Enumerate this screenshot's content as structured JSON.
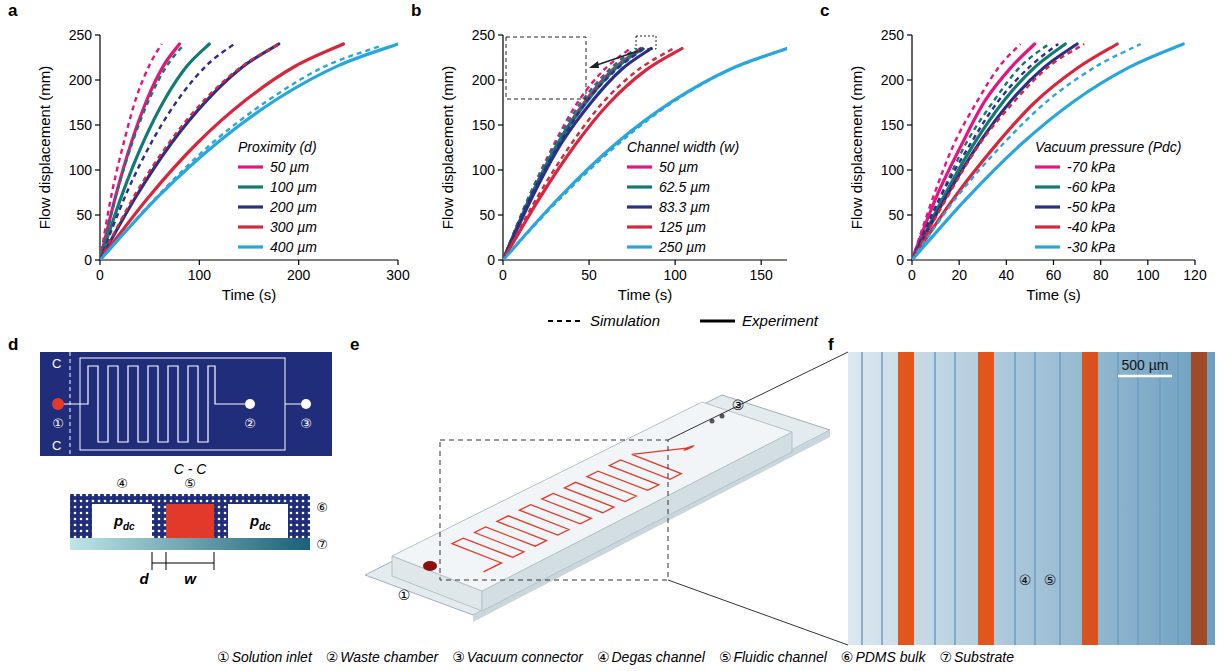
{
  "chart_data": [
    {
      "type": "line",
      "panel": "a",
      "x_label": "Time (s)",
      "y_label": "Flow displacement (mm)",
      "legend_title": "Proximity (d)",
      "legend": "lower right",
      "grid": false,
      "xlim": [
        0,
        300
      ],
      "xticks": [
        0,
        100,
        200,
        300
      ],
      "ylim": [
        0,
        250
      ],
      "yticks": [
        0,
        50,
        100,
        150,
        200,
        250
      ],
      "series": [
        {
          "name": "50 µm",
          "color": "#e5147f",
          "experiment": {
            "x": [
              0,
              16,
              32,
              48,
              64,
              80
            ],
            "values": [
              0,
              72,
              132,
              180,
              216,
              240
            ]
          },
          "simulation": {
            "x": [
              0,
              12,
              25,
              37,
              50,
              62
            ],
            "values": [
              0,
              75,
              135,
              182,
              217,
              240
            ]
          }
        },
        {
          "name": "100 µm",
          "color": "#127a72",
          "experiment": {
            "x": [
              0,
              22,
              44,
              66,
              88,
              110
            ],
            "values": [
              0,
              72,
              132,
              180,
              216,
              240
            ]
          },
          "simulation": {
            "x": [
              0,
              17,
              34,
              51,
              68,
              85
            ],
            "values": [
              0,
              75,
              135,
              182,
              217,
              240
            ]
          }
        },
        {
          "name": "200 µm",
          "color": "#2b2f86",
          "experiment": {
            "x": [
              0,
              36,
              72,
              108,
              144,
              180
            ],
            "values": [
              0,
              70,
              130,
              178,
              215,
              240
            ]
          },
          "simulation": {
            "x": [
              0,
              27,
              54,
              81,
              108,
              135
            ],
            "values": [
              0,
              75,
              135,
              182,
              217,
              240
            ]
          }
        },
        {
          "name": "300 µm",
          "color": "#d7263d",
          "experiment": {
            "x": [
              0,
              49,
              98,
              147,
              196,
              245
            ],
            "values": [
              0,
              70,
              130,
              178,
              215,
              240
            ]
          },
          "simulation": {
            "x": [
              0,
              36,
              72,
              108,
              144,
              180
            ],
            "values": [
              0,
              74,
              134,
              181,
              216,
              240
            ]
          }
        },
        {
          "name": "400 µm",
          "color": "#2aa6df",
          "experiment": {
            "x": [
              0,
              60,
              120,
              180,
              240,
              300
            ],
            "values": [
              0,
              72,
              132,
              180,
              216,
              240
            ]
          },
          "simulation": {
            "x": [
              0,
              57,
              113,
              170,
              226,
              283
            ],
            "values": [
              0,
              70,
              130,
              178,
              215,
              238
            ]
          }
        }
      ]
    },
    {
      "type": "line",
      "panel": "b",
      "x_label": "Time (s)",
      "y_label": "Flow displacement (mm)",
      "legend_title": "Channel width (w)",
      "legend": "lower right",
      "grid": false,
      "xlim": [
        0,
        165
      ],
      "xticks": [
        0,
        50,
        100,
        150
      ],
      "ylim": [
        0,
        250
      ],
      "yticks": [
        0,
        50,
        100,
        150,
        200,
        250
      ],
      "series": [
        {
          "name": "50 µm",
          "color": "#e5147f",
          "experiment": {
            "x": [
              0,
              16,
              32,
              48,
              64,
              80
            ],
            "values": [
              0,
              70,
              130,
              177,
              212,
              235
            ]
          },
          "simulation": {
            "x": [
              0,
              15,
              30,
              44,
              59,
              74
            ],
            "values": [
              0,
              70,
              130,
              177,
              212,
              235
            ]
          }
        },
        {
          "name": "62.5 µm",
          "color": "#127a72",
          "experiment": {
            "x": [
              0,
              16,
              32,
              49,
              65,
              81
            ],
            "values": [
              0,
              70,
              130,
              177,
              212,
              235
            ]
          },
          "simulation": {
            "x": [
              0,
              15,
              31,
              46,
              62,
              77
            ],
            "values": [
              0,
              70,
              130,
              177,
              212,
              235
            ]
          }
        },
        {
          "name": "83.3 µm",
          "color": "#2b2f86",
          "experiment": {
            "x": [
              0,
              17,
              34,
              52,
              69,
              86
            ],
            "values": [
              0,
              70,
              130,
              177,
              212,
              235
            ]
          },
          "simulation": {
            "x": [
              0,
              16,
              33,
              49,
              66,
              82
            ],
            "values": [
              0,
              70,
              130,
              177,
              212,
              235
            ]
          }
        },
        {
          "name": "125 µm",
          "color": "#d7263d",
          "experiment": {
            "x": [
              0,
              21,
              42,
              62,
              83,
              104
            ],
            "values": [
              0,
              68,
              128,
              175,
              211,
              235
            ]
          },
          "simulation": {
            "x": [
              0,
              20,
              40,
              59,
              79,
              99
            ],
            "values": [
              0,
              70,
              130,
              177,
              212,
              235
            ]
          }
        },
        {
          "name": "250 µm",
          "color": "#2aa6df",
          "experiment": {
            "x": [
              0,
              33,
              66,
              99,
              132,
              165
            ],
            "values": [
              0,
              70,
              130,
              177,
              212,
              235
            ]
          },
          "simulation": {
            "x": [
              0,
              32,
              64,
              96,
              128,
              160
            ],
            "values": [
              0,
              66,
              124,
              172,
              208,
              232
            ]
          }
        }
      ]
    },
    {
      "type": "line",
      "panel": "c",
      "x_label": "Time (s)",
      "y_label": "Flow displacement (mm)",
      "legend_title": "Vacuum pressure (Pdc)",
      "legend": "lower right",
      "grid": false,
      "xlim": [
        0,
        120
      ],
      "xticks": [
        0,
        20,
        40,
        60,
        80,
        100,
        120
      ],
      "ylim": [
        0,
        250
      ],
      "yticks": [
        0,
        50,
        100,
        150,
        200,
        250
      ],
      "series": [
        {
          "name": "-70 kPa",
          "color": "#e5147f",
          "experiment": {
            "x": [
              0,
              10,
              21,
              31,
              42,
              52
            ],
            "values": [
              0,
              68,
              128,
              177,
              214,
              240
            ]
          },
          "simulation": {
            "x": [
              0,
              9,
              18,
              28,
              37,
              46
            ],
            "values": [
              0,
              70,
              130,
              178,
              215,
              240
            ]
          }
        },
        {
          "name": "-60 kPa",
          "color": "#127a72",
          "experiment": {
            "x": [
              0,
              13,
              26,
              39,
              52,
              65
            ],
            "values": [
              0,
              68,
              128,
              177,
              214,
              240
            ]
          },
          "simulation": {
            "x": [
              0,
              12,
              23,
              35,
              46,
              58
            ],
            "values": [
              0,
              70,
              130,
              178,
              215,
              240
            ]
          }
        },
        {
          "name": "-50 kPa",
          "color": "#2b2f86",
          "experiment": {
            "x": [
              0,
              14,
              28,
              42,
              56,
              70
            ],
            "values": [
              0,
              68,
              128,
              177,
              214,
              240
            ]
          },
          "simulation": {
            "x": [
              0,
              12,
              25,
              37,
              50,
              62
            ],
            "values": [
              0,
              70,
              130,
              178,
              215,
              240
            ]
          }
        },
        {
          "name": "-40 kPa",
          "color": "#d7263d",
          "experiment": {
            "x": [
              0,
              17,
              35,
              52,
              70,
              87
            ],
            "values": [
              0,
              66,
              126,
              175,
              213,
              240
            ]
          },
          "simulation": {
            "x": [
              0,
              15,
              29,
              44,
              58,
              73
            ],
            "values": [
              0,
              70,
              130,
              178,
              215,
              240
            ]
          }
        },
        {
          "name": "-30 kPa",
          "color": "#2aa6df",
          "experiment": {
            "x": [
              0,
              23,
              46,
              69,
              92,
              115
            ],
            "values": [
              0,
              68,
              128,
              177,
              214,
              240
            ]
          },
          "simulation": {
            "x": [
              0,
              19,
              39,
              58,
              78,
              97
            ],
            "values": [
              0,
              70,
              130,
              178,
              215,
              240
            ]
          }
        }
      ]
    }
  ],
  "line_styles": {
    "simulation": {
      "label": "Simulation",
      "line_style": "dashed"
    },
    "experiment": {
      "label": "Experiment",
      "line_style": "solid"
    }
  },
  "diagram": {
    "d": {
      "panel": "d",
      "section_marks": [
        "C",
        "C"
      ],
      "section_title": "C - C",
      "top_labels": [
        "①",
        "②",
        "③"
      ],
      "cross_labels": [
        "④",
        "⑤",
        "⑥",
        "⑦"
      ],
      "pressure": {
        "symbol": "p",
        "subscript": "dc"
      },
      "dimensions": [
        "d",
        "w"
      ]
    },
    "e": {
      "panel": "e",
      "labels": [
        "①",
        "③"
      ]
    },
    "f": {
      "panel": "f",
      "scale_bar": "500 µm",
      "labels": [
        "④",
        "⑤"
      ]
    },
    "key": [
      {
        "number": "①",
        "label": "Solution inlet"
      },
      {
        "number": "②",
        "label": "Waste chamber"
      },
      {
        "number": "③",
        "label": "Vacuum connector"
      },
      {
        "number": "④",
        "label": "Degas channel"
      },
      {
        "number": "⑤",
        "label": "Fluidic channel"
      },
      {
        "number": "⑥",
        "label": "PDMS bulk"
      },
      {
        "number": "⑦",
        "label": "Substrate"
      }
    ]
  }
}
